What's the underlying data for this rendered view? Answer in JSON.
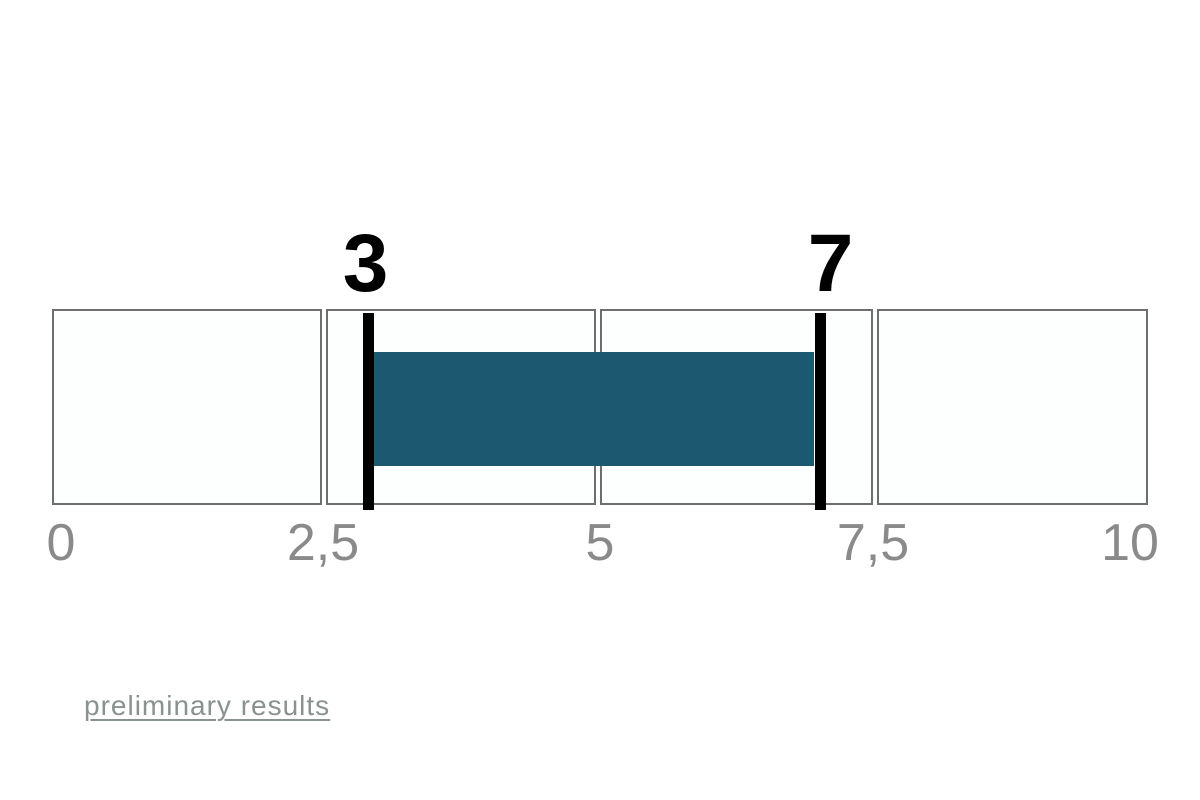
{
  "chart_data": {
    "type": "range",
    "title": "",
    "scale": {
      "min": 0,
      "max": 10,
      "ticks": [
        0,
        2.5,
        5,
        7.5,
        10
      ],
      "tick_labels": [
        "0",
        "2,5",
        "5",
        "7,5",
        "10"
      ],
      "segments": 4,
      "grid": "off",
      "legend": "none"
    },
    "range": {
      "low": 3,
      "high": 7,
      "low_label": "3",
      "high_label": "7"
    },
    "colors": {
      "bar": "#1d5871",
      "marker": "#000000",
      "segment_fill": "#fcfffe",
      "segment_border": "#6e6e6e",
      "tick_text": "#8a8a8a",
      "value_text": "#000000",
      "link_text": "#8a9191"
    }
  },
  "footnote": {
    "link_label": "preliminary results"
  }
}
